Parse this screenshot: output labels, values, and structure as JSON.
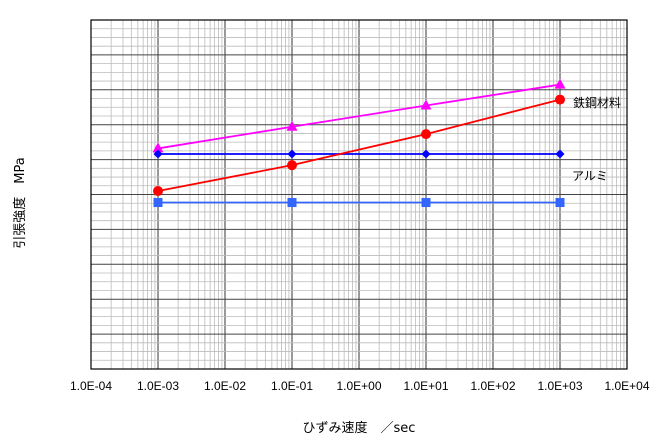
{
  "chart_data": {
    "type": "line",
    "xlabel": "ひずみ速度　／sec",
    "ylabel": "引張強度　MPa",
    "x_scale": "log",
    "x_ticks": [
      "1.0E-04",
      "1.0E-03",
      "1.0E-02",
      "1.0E-01",
      "1.0E+00",
      "1.0E+01",
      "1.0E+02",
      "1.0E+03",
      "1.0E+04"
    ],
    "xlim": [
      0.0001,
      10000
    ],
    "ylim": [
      0,
      100
    ],
    "grid": true,
    "legend": "none",
    "annotations": [
      {
        "text": "鉄鋼材料",
        "series": 0
      },
      {
        "text": "アルミ",
        "series": 1
      }
    ],
    "series": [
      {
        "color": "#ff00ff",
        "marker": "triangle",
        "x": [
          0.001,
          0.1,
          10,
          1000
        ],
        "y": [
          63.2,
          69.4,
          75.5,
          81.5
        ]
      },
      {
        "color": "#0000ff",
        "marker": "diamond",
        "x": [
          0.001,
          0.1,
          10,
          1000
        ],
        "y": [
          61.6,
          61.6,
          61.6,
          61.6
        ]
      },
      {
        "color": "#ff0000",
        "marker": "circle",
        "x": [
          0.001,
          0.1,
          10,
          1000
        ],
        "y": [
          51.0,
          58.4,
          67.3,
          77.2
        ]
      },
      {
        "color": "#3366ff",
        "marker": "square",
        "x": [
          0.001,
          0.1,
          10,
          1000
        ],
        "y": [
          47.7,
          47.7,
          47.7,
          47.7
        ]
      }
    ]
  }
}
